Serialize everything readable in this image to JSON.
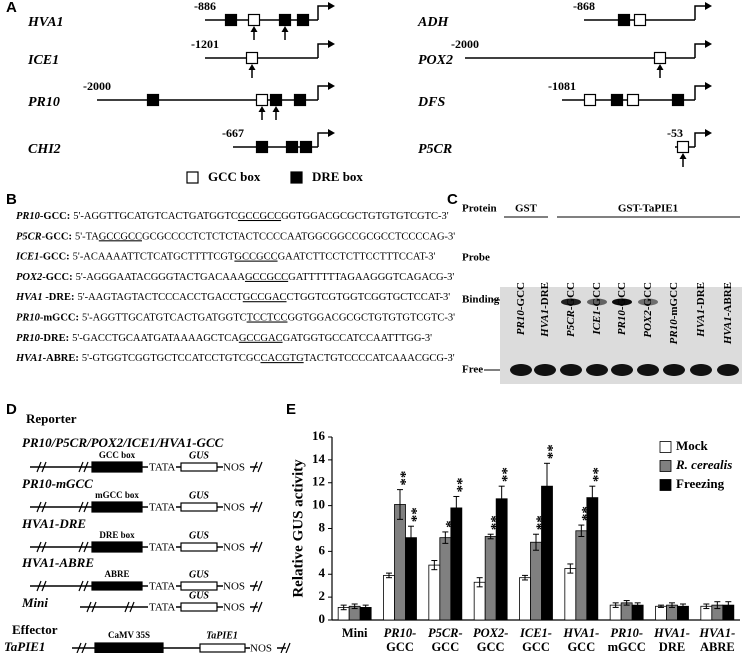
{
  "panels": {
    "A": {
      "letter": "A",
      "genes": [
        {
          "name": "HVA1",
          "start": -886
        },
        {
          "name": "ICE1",
          "start": -1201
        },
        {
          "name": "PR10",
          "start": -2000
        },
        {
          "name": "CHI2",
          "start": -667
        },
        {
          "name": "ADH",
          "start": -868
        },
        {
          "name": "POX2",
          "start": -2000
        },
        {
          "name": "DFS",
          "start": -1081
        },
        {
          "name": "P5CR",
          "start": -53
        }
      ],
      "legend": [
        "GCC box",
        "DRE box"
      ]
    },
    "B": {
      "letter": "B",
      "rows": [
        {
          "gene": "PR10",
          "suffix": "-GCC:",
          "pre": "5'-AGGTTGCATGTCACTGATGGTC",
          "motif": "GCCGCC",
          "post": "GGTGGACGCGCTGTGTGTCGTC-3'"
        },
        {
          "gene": "P5CR",
          "suffix": "-GCC:",
          "pre": "5'-TA",
          "motif": "GCCGCC",
          "post": "GCGCCCCTCTCTCTACTCCCCAATGGCGGCCGCGCCTCCCCAG-3'"
        },
        {
          "gene": "ICE1",
          "suffix": "-GCC:",
          "pre": "5'-ACAAAATTCTCATGCTTTTCGT",
          "motif": "GCCGCC",
          "post": "GAATCTTCCTCTTCCTTTCCAT-3'"
        },
        {
          "gene": "POX2",
          "suffix": "-GCC:",
          "pre": "5'-AGGGAATACGGGTACTGACAAA",
          "motif": "GCCGCC",
          "post": "GATTTTTTAGAAGGGTCAGACG-3'"
        },
        {
          "gene": "HVA1",
          "suffix": " -DRE:",
          "pre": "5'-AAGTAGTACTCCCACCTGACCT",
          "motif": "GCCGAC",
          "post": "CTGGTCGTGGTCGGTGCTCCAT-3'"
        },
        {
          "gene": "PR10",
          "suffix": "-mGCC:",
          "pre": "5'-AGGTTGCATGTCACTGATGGTC",
          "motif": "TCCTCC",
          "post": "GGTGGACGCGCTGTGTGTCGTC-3'"
        },
        {
          "gene": "PR10",
          "suffix": "-DRE:",
          "pre": "5'-GACCTGCAATGATAAAAGCTCA",
          "motif": "GCCGAC",
          "post": "GATGGTGCCATCCAATTTGG-3'"
        },
        {
          "gene": "HVA1",
          "suffix": "-ABRE:",
          "pre": "5'-GTGGTCGGTGCTCCATCCTGTCGC",
          "motif": "CACGTG",
          "post": "TACTGTCCCCATCAAACGCG-3'"
        }
      ]
    },
    "C": {
      "letter": "C",
      "protein_label": "Protein",
      "groups": [
        "GST",
        "GST-TaPIE1"
      ],
      "probe_label": "Probe",
      "lanes": [
        {
          "gene": "PR10",
          "suffix": "-GCC"
        },
        {
          "gene": "HVA1",
          "suffix": "-DRE"
        },
        {
          "gene": "P5CR",
          "suffix": "-GCC"
        },
        {
          "gene": "ICE1",
          "suffix": "-GCC"
        },
        {
          "gene": "PR10",
          "suffix": "-GCC"
        },
        {
          "gene": "POX2",
          "suffix": "-GCC"
        },
        {
          "gene": "PR10",
          "suffix": "-mGCC"
        },
        {
          "gene": "HVA1",
          "suffix": "-DRE"
        },
        {
          "gene": "HVA1",
          "suffix": "-ABRE"
        }
      ],
      "binding": "Binding",
      "free": "Free"
    },
    "D": {
      "letter": "D",
      "reporter": "Reporter",
      "constructs": [
        {
          "title": "PR10/P5CR/POX2/ICE1/HVA1-GCC",
          "box": "GCC box",
          "tata": "TATA",
          "gus": "GUS",
          "nos": "NOS"
        },
        {
          "title": "PR10-mGCC",
          "box": "mGCC box",
          "tata": "TATA",
          "gus": "GUS",
          "nos": "NOS"
        },
        {
          "title": "HVA1-DRE",
          "box": "DRE box",
          "tata": "TATA",
          "gus": "GUS",
          "nos": "NOS"
        },
        {
          "title": "HVA1-ABRE",
          "box": "ABRE",
          "tata": "TATA",
          "gus": "GUS",
          "nos": "NOS"
        },
        {
          "title": "Mini",
          "tata": "TATA",
          "gus": "GUS",
          "nos": "NOS"
        }
      ],
      "effector": "Effector",
      "effector_construct": {
        "title": "TaPIE1",
        "promoter": "CaMV 35S",
        "gene": "TaPIE1",
        "nos": "NOS"
      }
    },
    "E": {
      "letter": "E"
    }
  },
  "chart_data": {
    "type": "bar",
    "y_label": "Relative GUS activity",
    "categories": [
      [
        "Mini"
      ],
      [
        "PR10-",
        "GCC"
      ],
      [
        "P5CR-",
        "GCC"
      ],
      [
        "POX2-",
        "GCC"
      ],
      [
        "ICE1-",
        "GCC"
      ],
      [
        "HVA1-",
        "GCC"
      ],
      [
        "PR10-",
        "mGCC"
      ],
      [
        "HVA1-",
        "DRE"
      ],
      [
        "HVA1-",
        "ABRE"
      ]
    ],
    "series": [
      {
        "name": "Mock",
        "color": "#ffffff",
        "values": [
          1.1,
          3.9,
          4.8,
          3.3,
          3.7,
          4.5,
          1.3,
          1.2,
          1.2
        ],
        "errors": [
          0.2,
          0.2,
          0.4,
          0.4,
          0.2,
          0.4,
          0.2,
          0.1,
          0.2
        ],
        "stars": [
          null,
          null,
          null,
          null,
          null,
          null,
          null,
          null,
          null
        ]
      },
      {
        "name": "R. cerealis",
        "color": "#808080",
        "values": [
          1.2,
          10.1,
          7.2,
          7.3,
          6.8,
          7.8,
          1.5,
          1.3,
          1.3
        ],
        "errors": [
          0.2,
          1.3,
          0.5,
          0.2,
          0.7,
          0.5,
          0.2,
          0.2,
          0.3
        ],
        "stars": [
          null,
          "**",
          "*",
          "**",
          "**",
          "**",
          null,
          null,
          null
        ]
      },
      {
        "name": "Freezing",
        "color": "#000000",
        "values": [
          1.1,
          7.2,
          9.8,
          10.6,
          11.7,
          10.7,
          1.3,
          1.2,
          1.3
        ],
        "errors": [
          0.2,
          1.0,
          1.0,
          1.1,
          2.0,
          1.0,
          0.2,
          0.2,
          0.3
        ],
        "stars": [
          null,
          "**",
          "**",
          "**",
          "**",
          "**",
          null,
          null,
          null
        ]
      }
    ],
    "ylim": [
      0,
      16
    ],
    "yticks": [
      0,
      2,
      4,
      6,
      8,
      10,
      12,
      14,
      16
    ],
    "grid": false,
    "legend": "top-right"
  }
}
